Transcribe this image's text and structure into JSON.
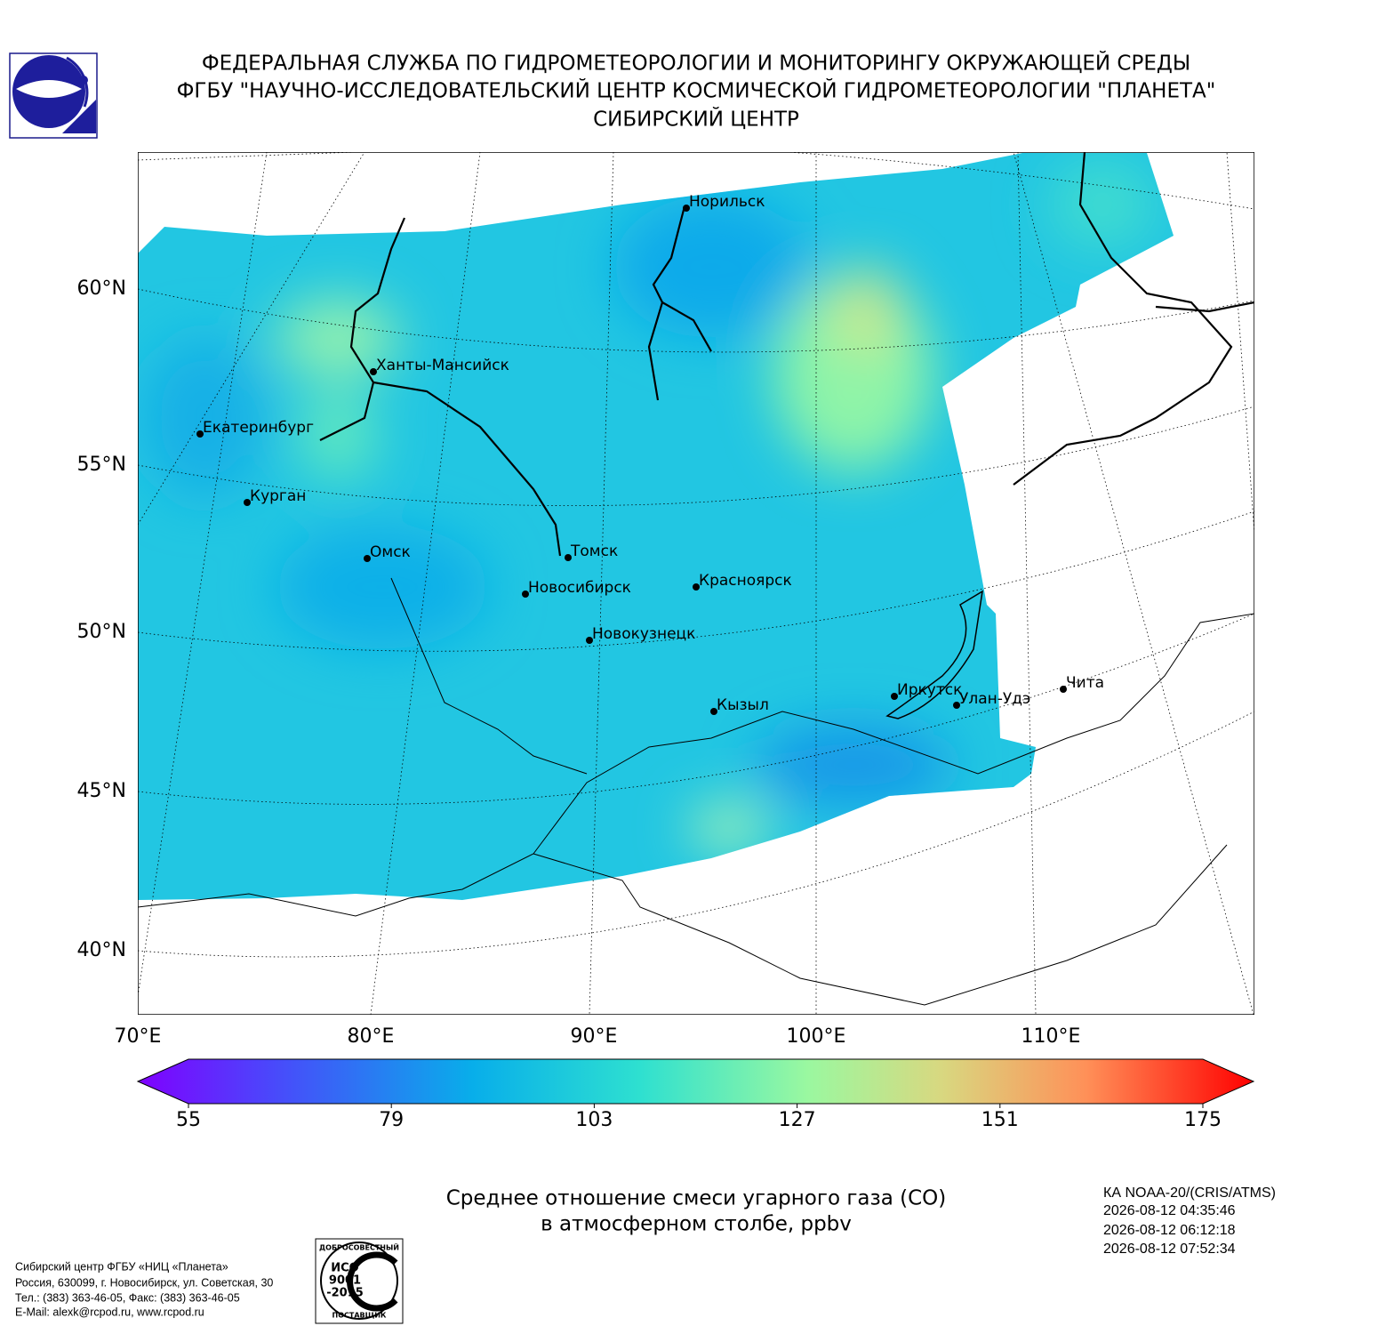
{
  "header": {
    "lines": [
      "ФЕДЕРАЛЬНАЯ СЛУЖБА ПО ГИДРОМЕТЕОРОЛОГИИ И МОНИТОРИНГУ ОКРУЖАЮЩЕЙ СРЕДЫ",
      "ФГБУ \"НАУЧНО-ИССЛЕДОВАТЕЛЬСКИЙ ЦЕНТР КОСМИЧЕСКОЙ ГИДРОМЕТЕОРОЛОГИИ \"ПЛАНЕТА\"",
      "СИБИРСКИЙ ЦЕНТР"
    ]
  },
  "map": {
    "lat_labels": [
      "60°N",
      "55°N",
      "50°N",
      "45°N",
      "40°N"
    ],
    "lon_labels": [
      "70°E",
      "80°E",
      "90°E",
      "100°E",
      "110°E"
    ],
    "cities": [
      "Норильск",
      "Ханты-Мансийск",
      "Екатеринбург",
      "Курган",
      "Омск",
      "Томск",
      "Новосибирск",
      "Красноярск",
      "Новокузнецк",
      "Кызыл",
      "Иркутск",
      "Улан-Удэ",
      "Чита"
    ]
  },
  "colorbar": {
    "lim": [
      55,
      175
    ],
    "ticks": [
      55,
      79,
      103,
      127,
      151,
      175
    ]
  },
  "caption": {
    "lines": [
      "Среднее отношение смеси угарного газа (CO)",
      "в атмосферном столбе, ppbv"
    ]
  },
  "satellite": {
    "lines": [
      "КА NOAA-20/(CRIS/ATMS)",
      "2026-08-12 04:35:46",
      "2026-08-12 06:12:18",
      "2026-08-12 07:52:34"
    ]
  },
  "footer": {
    "lines": [
      "Сибирский центр ФГБУ «НИЦ «Планета»",
      "Россия, 630099, г. Новосибирск, ул. Советская, 30",
      "Тел.: (383) 363-46-05, Факс: (383) 363-46-05",
      "E-Mail: alexk@rcpod.ru, www.rcpod.ru"
    ]
  },
  "iso_logo": {
    "top": "ДОБРОСОВЕСТНЫЙ",
    "lines": [
      "ИСО",
      "9001",
      "-2015"
    ],
    "bottom": "ПОСТАВЩИК"
  }
}
